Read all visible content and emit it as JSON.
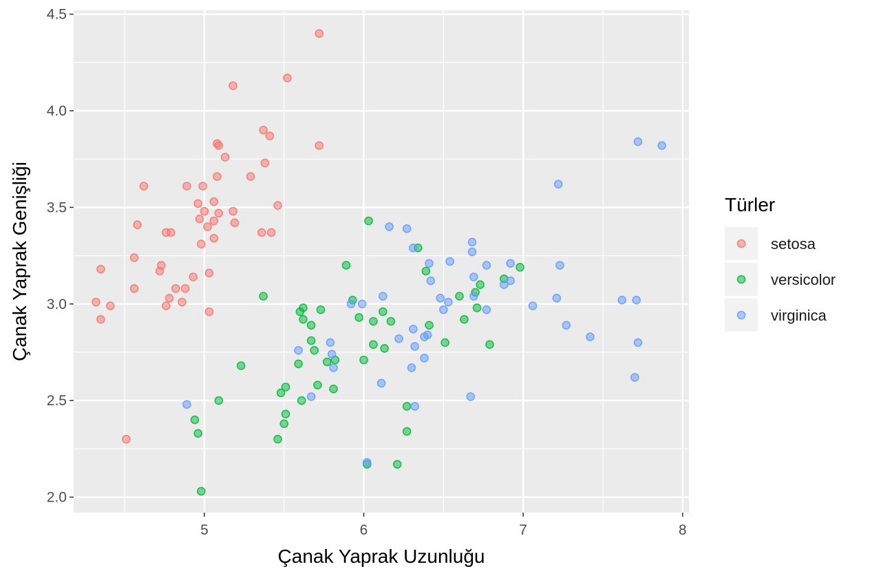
{
  "chart_data": {
    "type": "scatter",
    "title": "",
    "xlabel": "Çanak Yaprak Uzunluğu",
    "ylabel": "Çanak Yaprak Genişliği",
    "xlim": [
      4.18,
      8.04
    ],
    "ylim": [
      1.92,
      4.52
    ],
    "x_ticks": [
      5,
      6,
      7,
      8
    ],
    "x_tick_labels": [
      "5",
      "6",
      "7",
      "8"
    ],
    "y_ticks": [
      2.0,
      2.5,
      3.0,
      3.5,
      4.0,
      4.5
    ],
    "y_tick_labels": [
      "2.0",
      "2.5",
      "3.0",
      "3.5",
      "4.0",
      "4.5"
    ],
    "grid": true,
    "legend": {
      "title": "Türler",
      "position": "right",
      "entries": [
        "setosa",
        "versicolor",
        "virginica"
      ]
    },
    "colors": {
      "setosa": "#F8766D",
      "versicolor": "#00BA38",
      "virginica": "#619CFF",
      "panel": "#EBEBEB",
      "grid": "#FFFFFF"
    },
    "series": [
      {
        "name": "setosa",
        "color": "#F8766D",
        "points": [
          [
            5.72,
            4.4
          ],
          [
            5.18,
            4.13
          ],
          [
            5.52,
            4.17
          ],
          [
            5.37,
            3.9
          ],
          [
            5.41,
            3.87
          ],
          [
            5.08,
            3.83
          ],
          [
            5.09,
            3.82
          ],
          [
            5.72,
            3.82
          ],
          [
            5.13,
            3.76
          ],
          [
            5.38,
            3.73
          ],
          [
            5.08,
            3.66
          ],
          [
            5.29,
            3.66
          ],
          [
            4.62,
            3.61
          ],
          [
            4.89,
            3.61
          ],
          [
            4.99,
            3.61
          ],
          [
            4.96,
            3.52
          ],
          [
            5.06,
            3.53
          ],
          [
            5.46,
            3.51
          ],
          [
            5.0,
            3.48
          ],
          [
            5.09,
            3.47
          ],
          [
            5.18,
            3.48
          ],
          [
            4.97,
            3.44
          ],
          [
            5.06,
            3.43
          ],
          [
            5.19,
            3.42
          ],
          [
            4.58,
            3.41
          ],
          [
            5.02,
            3.4
          ],
          [
            4.76,
            3.37
          ],
          [
            4.79,
            3.37
          ],
          [
            5.36,
            3.37
          ],
          [
            5.42,
            3.37
          ],
          [
            5.06,
            3.34
          ],
          [
            4.98,
            3.31
          ],
          [
            4.56,
            3.24
          ],
          [
            4.73,
            3.2
          ],
          [
            4.35,
            3.18
          ],
          [
            4.72,
            3.17
          ],
          [
            5.03,
            3.16
          ],
          [
            4.93,
            3.14
          ],
          [
            4.56,
            3.08
          ],
          [
            4.82,
            3.08
          ],
          [
            4.88,
            3.08
          ],
          [
            4.78,
            3.03
          ],
          [
            4.32,
            3.01
          ],
          [
            4.86,
            3.01
          ],
          [
            4.41,
            2.99
          ],
          [
            4.76,
            2.99
          ],
          [
            5.03,
            2.96
          ],
          [
            4.35,
            2.92
          ],
          [
            4.51,
            2.3
          ]
        ]
      },
      {
        "name": "versicolor",
        "color": "#00BA38",
        "points": [
          [
            6.03,
            3.43
          ],
          [
            6.34,
            3.29
          ],
          [
            5.89,
            3.2
          ],
          [
            6.98,
            3.19
          ],
          [
            6.39,
            3.17
          ],
          [
            6.88,
            3.13
          ],
          [
            6.73,
            3.1
          ],
          [
            6.7,
            3.06
          ],
          [
            5.37,
            3.04
          ],
          [
            6.6,
            3.04
          ],
          [
            5.93,
            3.02
          ],
          [
            5.62,
            2.98
          ],
          [
            5.73,
            2.97
          ],
          [
            6.71,
            2.98
          ],
          [
            5.6,
            2.96
          ],
          [
            6.12,
            2.96
          ],
          [
            5.97,
            2.93
          ],
          [
            5.62,
            2.92
          ],
          [
            6.63,
            2.92
          ],
          [
            6.06,
            2.91
          ],
          [
            6.17,
            2.91
          ],
          [
            5.67,
            2.89
          ],
          [
            6.41,
            2.89
          ],
          [
            5.67,
            2.81
          ],
          [
            6.51,
            2.8
          ],
          [
            6.06,
            2.79
          ],
          [
            6.79,
            2.79
          ],
          [
            6.13,
            2.77
          ],
          [
            5.69,
            2.76
          ],
          [
            5.82,
            2.71
          ],
          [
            5.77,
            2.7
          ],
          [
            6.0,
            2.71
          ],
          [
            5.59,
            2.69
          ],
          [
            5.23,
            2.68
          ],
          [
            5.71,
            2.58
          ],
          [
            5.51,
            2.57
          ],
          [
            5.81,
            2.56
          ],
          [
            5.48,
            2.54
          ],
          [
            5.61,
            2.5
          ],
          [
            5.09,
            2.5
          ],
          [
            6.27,
            2.47
          ],
          [
            5.51,
            2.43
          ],
          [
            4.94,
            2.4
          ],
          [
            5.5,
            2.38
          ],
          [
            4.96,
            2.33
          ],
          [
            6.27,
            2.34
          ],
          [
            5.46,
            2.3
          ],
          [
            6.02,
            2.17
          ],
          [
            6.21,
            2.17
          ],
          [
            4.98,
            2.03
          ]
        ]
      },
      {
        "name": "virginica",
        "color": "#619CFF",
        "points": [
          [
            7.72,
            3.84
          ],
          [
            7.87,
            3.82
          ],
          [
            7.22,
            3.62
          ],
          [
            6.16,
            3.4
          ],
          [
            6.27,
            3.39
          ],
          [
            6.68,
            3.32
          ],
          [
            6.31,
            3.29
          ],
          [
            6.68,
            3.27
          ],
          [
            6.54,
            3.22
          ],
          [
            6.41,
            3.21
          ],
          [
            6.77,
            3.2
          ],
          [
            6.92,
            3.21
          ],
          [
            7.23,
            3.2
          ],
          [
            6.69,
            3.14
          ],
          [
            6.42,
            3.12
          ],
          [
            6.92,
            3.12
          ],
          [
            6.88,
            3.1
          ],
          [
            6.12,
            3.04
          ],
          [
            6.48,
            3.03
          ],
          [
            6.69,
            3.04
          ],
          [
            7.21,
            3.03
          ],
          [
            7.62,
            3.02
          ],
          [
            7.71,
            3.02
          ],
          [
            6.53,
            3.01
          ],
          [
            5.92,
            3.0
          ],
          [
            5.99,
            3.0
          ],
          [
            6.5,
            2.97
          ],
          [
            6.77,
            2.97
          ],
          [
            7.06,
            2.99
          ],
          [
            7.27,
            2.89
          ],
          [
            6.31,
            2.87
          ],
          [
            6.38,
            2.83
          ],
          [
            6.4,
            2.84
          ],
          [
            6.22,
            2.82
          ],
          [
            7.42,
            2.83
          ],
          [
            5.79,
            2.8
          ],
          [
            7.72,
            2.8
          ],
          [
            6.32,
            2.78
          ],
          [
            5.59,
            2.76
          ],
          [
            5.8,
            2.74
          ],
          [
            6.38,
            2.72
          ],
          [
            5.81,
            2.67
          ],
          [
            6.3,
            2.67
          ],
          [
            7.7,
            2.62
          ],
          [
            6.11,
            2.59
          ],
          [
            5.67,
            2.52
          ],
          [
            6.67,
            2.52
          ],
          [
            4.89,
            2.48
          ],
          [
            6.32,
            2.47
          ],
          [
            6.02,
            2.18
          ]
        ]
      }
    ]
  }
}
